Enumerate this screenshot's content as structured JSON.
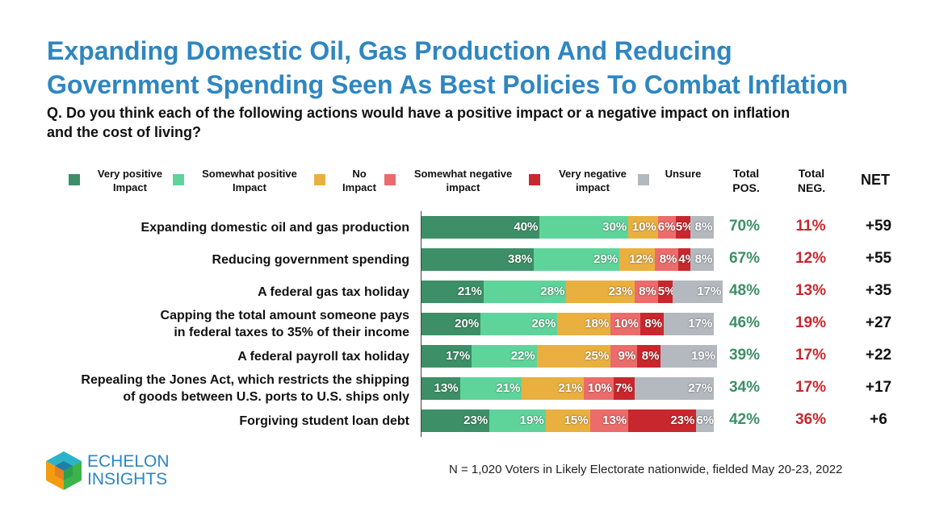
{
  "title_lines": [
    "Expanding Domestic Oil, Gas Production And Reducing",
    "Government Spending Seen As Best Policies To Combat Inflation"
  ],
  "question_lines": [
    "Q. Do you think each of the following actions would have a positive impact or a negative impact on inflation",
    "and the cost of living?"
  ],
  "legend": [
    {
      "line1": "Very positive",
      "line2": "Impact",
      "color": "#3d8f67"
    },
    {
      "line1": "Somewhat positive",
      "line2": "Impact",
      "color": "#5fd49a"
    },
    {
      "line1": "No",
      "line2": "Impact",
      "color": "#e9b040"
    },
    {
      "line1": "Somewhat negative",
      "line2": "impact",
      "color": "#ec6b6b"
    },
    {
      "line1": "Very negative",
      "line2": "impact",
      "color": "#c8272d"
    },
    {
      "line1": "Unsure",
      "line2": "",
      "color": "#b4b9bf"
    }
  ],
  "columns": {
    "pos_line1": "Total",
    "pos_line2": "POS.",
    "neg_line1": "Total",
    "neg_line2": "NEG.",
    "net": "NET",
    "pos_color": "#3d8f67",
    "neg_color": "#c8272d",
    "net_color": "#111111"
  },
  "chart_data": {
    "type": "bar",
    "orientation": "horizontal-stacked",
    "categories": [
      "Expanding domestic oil and gas production",
      "Reducing government spending",
      "A federal gas tax holiday",
      "Capping the total amount someone pays in federal taxes to 35% of their income",
      "A federal payroll tax holiday",
      "Repealing the Jones Act, which restricts the shipping of goods between U.S. ports to U.S. ships only",
      "Forgiving student loan debt"
    ],
    "label_lines": [
      [
        "Expanding domestic oil and gas production"
      ],
      [
        "Reducing government spending"
      ],
      [
        "A federal gas tax holiday"
      ],
      [
        "Capping the total amount someone pays",
        "in federal taxes to 35% of their income"
      ],
      [
        "A federal payroll tax holiday"
      ],
      [
        "Repealing the Jones Act, which restricts the shipping",
        "of goods between U.S. ports to U.S. ships only"
      ],
      [
        "Forgiving student loan debt"
      ]
    ],
    "series": [
      {
        "name": "Very positive Impact",
        "values": [
          40,
          38,
          21,
          20,
          17,
          13,
          23
        ]
      },
      {
        "name": "Somewhat positive Impact",
        "values": [
          30,
          29,
          28,
          26,
          22,
          21,
          19
        ]
      },
      {
        "name": "No Impact",
        "values": [
          10,
          12,
          23,
          18,
          25,
          21,
          15
        ]
      },
      {
        "name": "Somewhat negative impact",
        "values": [
          6,
          8,
          8,
          10,
          9,
          10,
          13
        ]
      },
      {
        "name": "Very negative impact",
        "values": [
          5,
          4,
          5,
          8,
          8,
          7,
          23
        ]
      },
      {
        "name": "Unsure",
        "values": [
          8,
          8,
          17,
          17,
          19,
          27,
          6
        ]
      }
    ],
    "total_pos": [
      "70%",
      "67%",
      "48%",
      "46%",
      "39%",
      "34%",
      "42%"
    ],
    "total_neg": [
      "11%",
      "12%",
      "13%",
      "19%",
      "17%",
      "17%",
      "36%"
    ],
    "net": [
      "+59",
      "+55",
      "+35",
      "+27",
      "+22",
      "+17",
      "+6"
    ],
    "xlim": [
      0,
      100
    ]
  },
  "footnote": "N = 1,020 Voters in Likely Electorate nationwide, fielded May 20-23, 2022",
  "logo": {
    "line1": "ECHELON",
    "line2": "INSIGHTS"
  }
}
